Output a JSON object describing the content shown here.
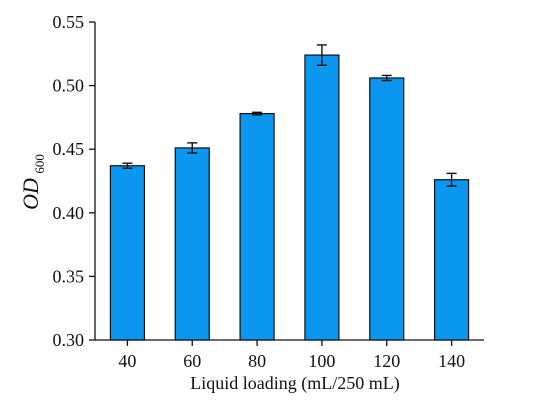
{
  "chart_data": {
    "type": "bar",
    "categories": [
      "40",
      "60",
      "80",
      "100",
      "120",
      "140"
    ],
    "values": [
      0.437,
      0.451,
      0.478,
      0.524,
      0.506,
      0.426
    ],
    "errors": [
      0.002,
      0.004,
      0.001,
      0.008,
      0.002,
      0.005
    ],
    "xlabel": "Liquid loading (mL/250 mL)",
    "ylabel_main": "OD",
    "ylabel_sub": "600",
    "ylim": [
      0.3,
      0.55
    ],
    "yticks": [
      "0.30",
      "0.35",
      "0.40",
      "0.45",
      "0.50",
      "0.55"
    ],
    "bar_color": "#0B96EF",
    "grid": false
  }
}
